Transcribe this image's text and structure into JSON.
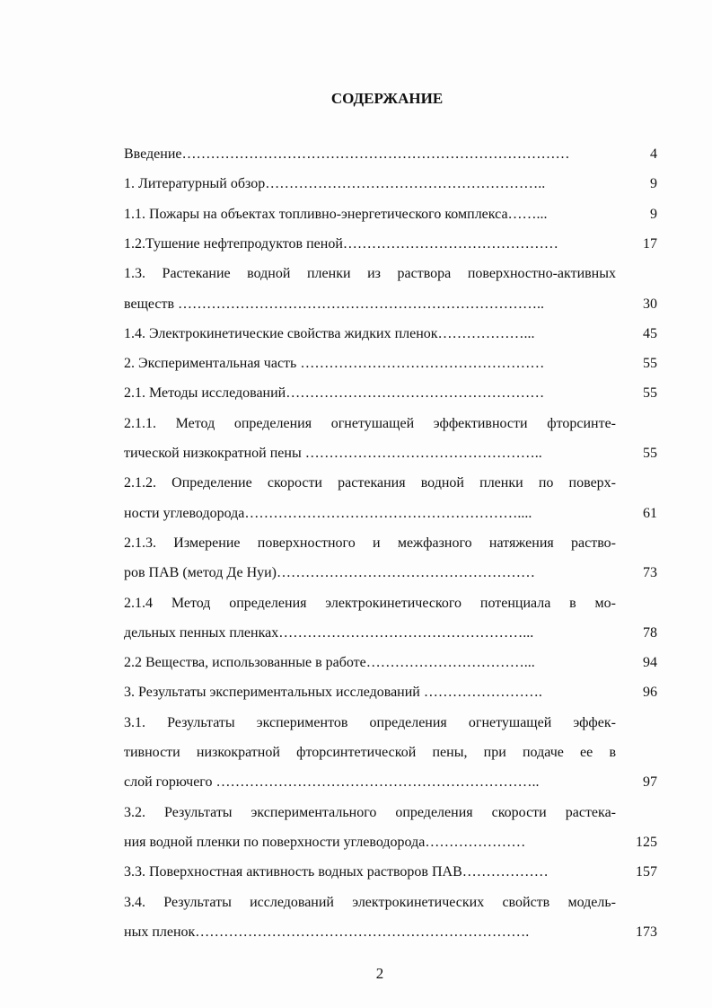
{
  "header": {
    "title": "СОДЕРЖАНИЕ"
  },
  "entries": [
    {
      "lines": [
        "Введение………………………………………………………………………"
      ],
      "page": "4"
    },
    {
      "lines": [
        "1. Литературный обзор………………………………………………….."
      ],
      "page": "9"
    },
    {
      "lines": [
        "1.1. Пожары на объектах топливно-энергетического комплекса……..."
      ],
      "page": "9"
    },
    {
      "lines": [
        "1.2.Тушение нефтепродуктов пеной………………………………………"
      ],
      "page": "17"
    },
    {
      "lines": [
        "1.3. Растекание водной пленки из раствора поверхностно-активных",
        "веществ ………………………………………………………………….."
      ],
      "page": "30"
    },
    {
      "lines": [
        "1.4. Электрокинетические свойства жидких пленок………………..."
      ],
      "page": "45"
    },
    {
      "lines": [
        "2. Экспериментальная часть ……………………………………………"
      ],
      "page": "55"
    },
    {
      "lines": [
        "2.1. Методы исследований………………………………………………"
      ],
      "page": "55"
    },
    {
      "lines": [
        "2.1.1. Метод определения огнетушащей эффективности фторсинте-",
        "тической низкократной пены ………………………………………….."
      ],
      "page": "55"
    },
    {
      "lines": [
        "2.1.2. Определение скорости растекания водной пленки по поверх-",
        "ности углеводорода…………………………………………………...."
      ],
      "page": "61"
    },
    {
      "lines": [
        "2.1.3. Измерение поверхностного и межфазного натяжения раство-",
        "ров ПАВ (метод Де Нуи)………………………………………………"
      ],
      "page": "73"
    },
    {
      "lines": [
        "2.1.4 Метод определения электрокинетического потенциала в мо-",
        "дельных пенных пленках……………………………………………..."
      ],
      "page": "78"
    },
    {
      "lines": [
        "2.2 Вещества, использованные в работе……………………………..."
      ],
      "page": "94"
    },
    {
      "lines": [
        "3. Результаты экспериментальных исследований ……………………."
      ],
      "page": "96"
    },
    {
      "lines": [
        "3.1. Результаты экспериментов определения огнетушащей эффек-",
        "тивности низкократной фторсинтетической пены, при подаче ее в",
        "слой горючего ………………………………………………………….."
      ],
      "page": "97"
    },
    {
      "lines": [
        "3.2. Результаты экспериментального определения скорости растека-",
        "ния водной пленки по поверхности углеводорода…………………"
      ],
      "page": "125"
    },
    {
      "lines": [
        "3.3. Поверхностная активность водных растворов ПАВ………………"
      ],
      "page": "157"
    },
    {
      "lines": [
        "3.4. Результаты исследований электрокинетических свойств модель-",
        "ных пленок……………………………………………………………."
      ],
      "page": "173"
    }
  ],
  "footer": {
    "page_number": "2"
  }
}
